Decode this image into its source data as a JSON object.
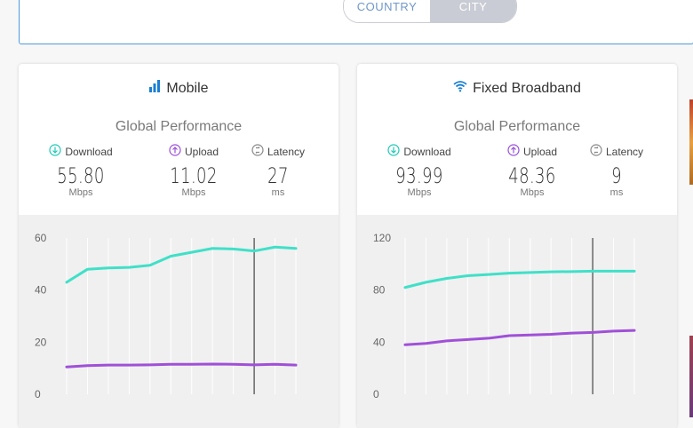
{
  "toggle": {
    "country": "COUNTRY",
    "city": "CITY"
  },
  "cards": [
    {
      "title": "Mobile",
      "icon": "signal-bars-icon",
      "subtitle": "Global Performance",
      "metrics": [
        {
          "label": "Download",
          "value": "55.80",
          "unit": "Mbps",
          "color": "#1fc7b6"
        },
        {
          "label": "Upload",
          "value": "11.02",
          "unit": "Mbps",
          "color": "#9a4fd8"
        },
        {
          "label": "Latency",
          "value": "27",
          "unit": "ms",
          "color": "#888888"
        }
      ]
    },
    {
      "title": "Fixed Broadband",
      "icon": "wifi-icon",
      "subtitle": "Global Performance",
      "metrics": [
        {
          "label": "Download",
          "value": "93.99",
          "unit": "Mbps",
          "color": "#1fc7b6"
        },
        {
          "label": "Upload",
          "value": "48.36",
          "unit": "Mbps",
          "color": "#9a4fd8"
        },
        {
          "label": "Latency",
          "value": "9",
          "unit": "ms",
          "color": "#888888"
        }
      ]
    }
  ],
  "chart_data": [
    {
      "type": "line",
      "ylim": [
        0,
        60
      ],
      "yticks": [
        "0",
        "20",
        "40",
        "60"
      ],
      "x": [
        1,
        2,
        3,
        4,
        5,
        6,
        7,
        8,
        9,
        10,
        11,
        12
      ],
      "marker_x": 10,
      "series": [
        {
          "color": "#40e0c8",
          "values": [
            43,
            48,
            48.5,
            48.7,
            49.5,
            53,
            54.5,
            56,
            55.8,
            55,
            56.5,
            56
          ]
        },
        {
          "color": "#a050d8",
          "values": [
            10.5,
            11,
            11.2,
            11.2,
            11.3,
            11.5,
            11.5,
            11.6,
            11.5,
            11.3,
            11.5,
            11.2
          ]
        }
      ]
    },
    {
      "type": "line",
      "ylim": [
        0,
        120
      ],
      "yticks": [
        "0",
        "40",
        "80",
        "120"
      ],
      "x": [
        1,
        2,
        3,
        4,
        5,
        6,
        7,
        8,
        9,
        10,
        11,
        12
      ],
      "marker_x": 10,
      "series": [
        {
          "color": "#40e0c8",
          "values": [
            82,
            86,
            89,
            91,
            92,
            93,
            93.5,
            94,
            94.2,
            94.5,
            94.5,
            94.5
          ]
        },
        {
          "color": "#a050d8",
          "values": [
            38,
            39,
            41,
            42,
            43,
            45,
            45.5,
            46,
            47,
            47.5,
            48.5,
            49
          ]
        }
      ]
    }
  ]
}
